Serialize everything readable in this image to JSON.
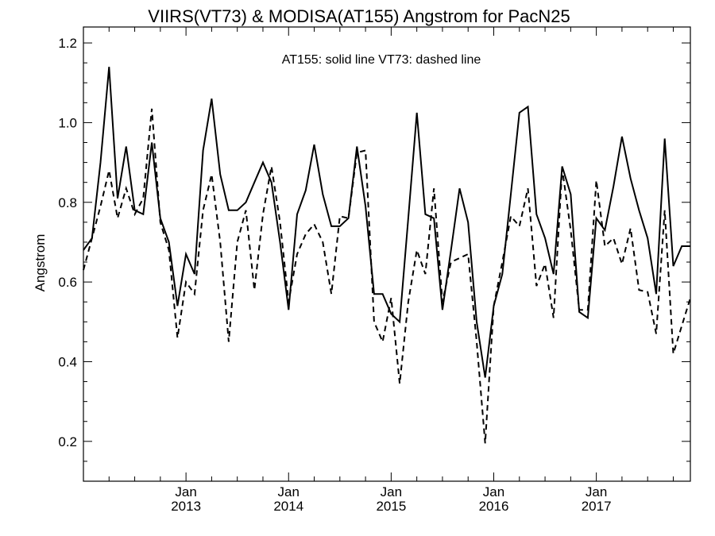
{
  "chart_data": {
    "type": "line",
    "title": "VIIRS(VT73) & MODISA(AT155)  Angstrom for PacN25",
    "annotation": "AT155: solid line   VT73: dashed line",
    "xlabel": "",
    "ylabel": "Angstrom",
    "xlim": [
      "2012-01-01",
      "2017-12-01"
    ],
    "ylim": [
      0.1,
      1.24
    ],
    "y_ticks": [
      0.2,
      0.4,
      0.6,
      0.8,
      1.0,
      1.2
    ],
    "y_tick_labels": [
      "0.2",
      "0.4",
      "0.6",
      "0.8",
      "1.0",
      "1.2"
    ],
    "x_ticks": [
      {
        "x": "2013-01",
        "month": "Jan",
        "year": "2013"
      },
      {
        "x": "2014-01",
        "month": "Jan",
        "year": "2014"
      },
      {
        "x": "2015-01",
        "month": "Jan",
        "year": "2015"
      },
      {
        "x": "2016-01",
        "month": "Jan",
        "year": "2016"
      },
      {
        "x": "2017-01",
        "month": "Jan",
        "year": "2017"
      }
    ],
    "grid": false,
    "x": [
      "2012-01",
      "2012-02",
      "2012-03",
      "2012-04",
      "2012-05",
      "2012-06",
      "2012-07",
      "2012-08",
      "2012-09",
      "2012-10",
      "2012-11",
      "2012-12",
      "2013-01",
      "2013-02",
      "2013-03",
      "2013-04",
      "2013-05",
      "2013-06",
      "2013-07",
      "2013-08",
      "2013-09",
      "2013-10",
      "2013-11",
      "2013-12",
      "2014-01",
      "2014-02",
      "2014-03",
      "2014-04",
      "2014-05",
      "2014-06",
      "2014-07",
      "2014-08",
      "2014-09",
      "2014-10",
      "2014-11",
      "2014-12",
      "2015-01",
      "2015-02",
      "2015-03",
      "2015-04",
      "2015-05",
      "2015-06",
      "2015-07",
      "2015-08",
      "2015-09",
      "2015-10",
      "2015-11",
      "2015-12",
      "2016-01",
      "2016-02",
      "2016-03",
      "2016-04",
      "2016-05",
      "2016-06",
      "2016-07",
      "2016-08",
      "2016-09",
      "2016-10",
      "2016-11",
      "2016-12",
      "2017-01",
      "2017-02",
      "2017-03",
      "2017-04",
      "2017-05",
      "2017-06",
      "2017-07",
      "2017-08",
      "2017-09",
      "2017-10",
      "2017-11",
      "2017-12"
    ],
    "series": [
      {
        "name": "AT155",
        "style": "solid",
        "color": "#000000",
        "values": [
          0.68,
          0.71,
          0.9,
          1.14,
          0.81,
          0.94,
          0.78,
          0.77,
          0.95,
          0.76,
          0.7,
          0.54,
          0.67,
          0.62,
          0.93,
          1.06,
          0.87,
          0.78,
          0.78,
          0.8,
          0.85,
          0.9,
          0.85,
          0.7,
          0.53,
          0.77,
          0.83,
          0.945,
          0.82,
          0.74,
          0.74,
          0.76,
          0.94,
          0.79,
          0.57,
          0.57,
          0.52,
          0.5,
          0.76,
          1.025,
          0.77,
          0.76,
          0.53,
          0.68,
          0.835,
          0.75,
          0.5,
          0.36,
          0.54,
          0.62,
          0.82,
          1.025,
          1.04,
          0.77,
          0.71,
          0.62,
          0.89,
          0.82,
          0.525,
          0.51,
          0.76,
          0.73,
          0.84,
          0.965,
          0.86,
          0.78,
          0.71,
          0.57,
          0.96,
          0.64,
          0.69,
          0.69
        ]
      },
      {
        "name": "VT73",
        "style": "dashed",
        "color": "#000000",
        "values": [
          0.63,
          0.71,
          0.79,
          0.88,
          0.76,
          0.835,
          0.77,
          0.81,
          1.035,
          0.75,
          0.68,
          0.46,
          0.6,
          0.57,
          0.78,
          0.87,
          0.7,
          0.45,
          0.7,
          0.78,
          0.58,
          0.77,
          0.89,
          0.75,
          0.55,
          0.67,
          0.72,
          0.745,
          0.7,
          0.57,
          0.765,
          0.76,
          0.925,
          0.93,
          0.5,
          0.45,
          0.56,
          0.345,
          0.55,
          0.68,
          0.62,
          0.835,
          0.55,
          0.65,
          0.66,
          0.67,
          0.45,
          0.195,
          0.54,
          0.65,
          0.765,
          0.74,
          0.835,
          0.59,
          0.645,
          0.51,
          0.885,
          0.73,
          0.53,
          0.53,
          0.855,
          0.69,
          0.71,
          0.645,
          0.735,
          0.58,
          0.575,
          0.47,
          0.78,
          0.42,
          0.49,
          0.56
        ]
      }
    ]
  }
}
